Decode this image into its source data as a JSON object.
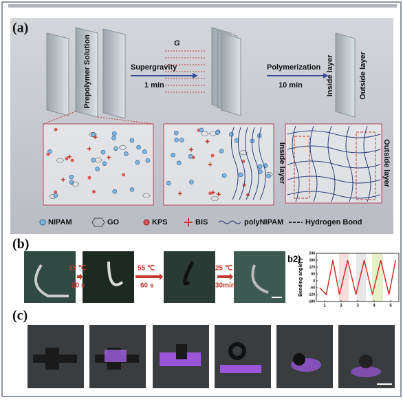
{
  "panel_a": {
    "label": "(a)",
    "prepolymer": "Prepolymer Solution",
    "field": "G",
    "step1": {
      "name": "Supergravity",
      "time": "1 min"
    },
    "step2": {
      "name": "Polymerization",
      "time": "10 min"
    },
    "plate_labels": [
      "Inside layer",
      "Outside layer"
    ],
    "inset_labels": [
      "Inside layer",
      "Outside layer"
    ],
    "legend": [
      "NIPAM",
      "GO",
      "KPS",
      "BIS",
      "polyNIPAM",
      "Hydrogen Bond"
    ]
  },
  "panel_b": {
    "label": "(b)",
    "steps": [
      {
        "temp": "55 ℃",
        "time": "20 s"
      },
      {
        "temp": "55 ℃",
        "time": "60 s"
      },
      {
        "temp": "25 ℃",
        "time": "30min"
      }
    ]
  },
  "panel_c": {
    "label": "(c)"
  },
  "chart_data": {
    "type": "line",
    "label": "b2)",
    "ylabel": "Bending angle(°)",
    "x": [
      0.7,
      1.1,
      1.5,
      1.9,
      2.4,
      2.9,
      3.4,
      3.9,
      4.4,
      4.9,
      5.3
    ],
    "values": [
      -60,
      -120,
      180,
      -120,
      180,
      -120,
      180,
      -120,
      180,
      -120,
      180
    ],
    "color": "#d42a2a",
    "xlim": [
      0.5,
      5.5
    ],
    "ylim": [
      -180,
      240
    ],
    "xticks": [
      1,
      2,
      3,
      4,
      5
    ],
    "yticks": [
      -180,
      -120,
      -60,
      0,
      60,
      120,
      180,
      240
    ]
  }
}
